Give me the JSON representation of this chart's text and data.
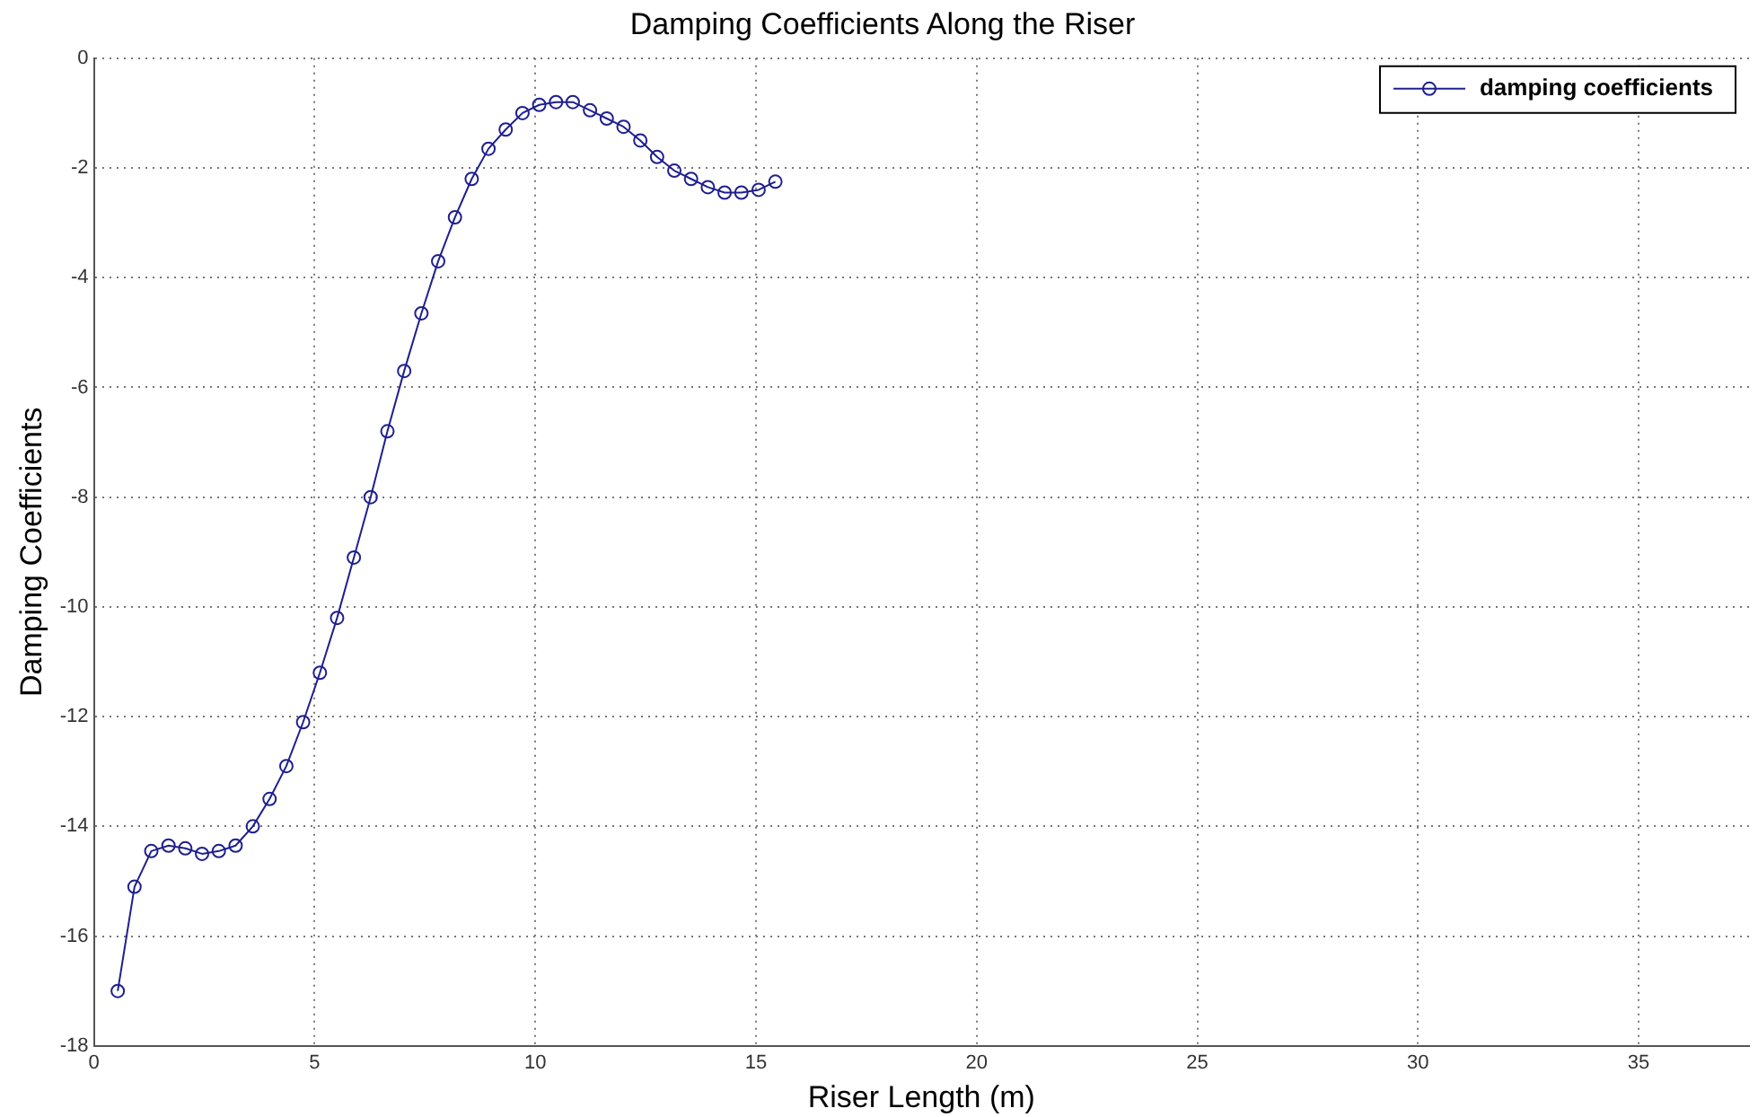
{
  "chart_data": {
    "type": "line",
    "title": "Damping Coefficients Along the Riser",
    "xlabel": "Riser Length (m)",
    "ylabel": "Damping Coefficients",
    "x": [
      0.54,
      0.92,
      1.3,
      1.69,
      2.07,
      2.45,
      2.83,
      3.21,
      3.6,
      3.98,
      4.36,
      4.74,
      5.12,
      5.51,
      5.89,
      6.27,
      6.65,
      7.03,
      7.42,
      7.8,
      8.18,
      8.56,
      8.94,
      9.33,
      9.71,
      10.09,
      10.47,
      10.85,
      11.24,
      11.62,
      12.0,
      12.38,
      12.76,
      13.15,
      13.53,
      13.91,
      14.29,
      14.67,
      15.06,
      15.44
    ],
    "series": [
      {
        "name": "damping coefficients",
        "color": "#1f1f8f",
        "values": [
          -17.0,
          -15.1,
          -14.45,
          -14.35,
          -14.4,
          -14.5,
          -14.45,
          -14.35,
          -14.0,
          -13.5,
          -12.9,
          -12.1,
          -11.2,
          -10.2,
          -9.1,
          -8.0,
          -6.8,
          -5.7,
          -4.65,
          -3.7,
          -2.9,
          -2.2,
          -1.65,
          -1.3,
          -1.0,
          -0.85,
          -0.8,
          -0.8,
          -0.95,
          -1.1,
          -1.25,
          -1.5,
          -1.8,
          -2.05,
          -2.2,
          -2.35,
          -2.45,
          -2.45,
          -2.4,
          -2.25
        ]
      }
    ],
    "xlim": [
      0,
      37.5
    ],
    "xticks": [
      0,
      5,
      10,
      15,
      20,
      25,
      30,
      35
    ],
    "ylim": [
      -18,
      0
    ],
    "yticks": [
      -18,
      -16,
      -14,
      -12,
      -10,
      -8,
      -6,
      -4,
      -2,
      0
    ],
    "grid": true,
    "legend": "top right",
    "marker": "circle",
    "line_style": "solid"
  }
}
